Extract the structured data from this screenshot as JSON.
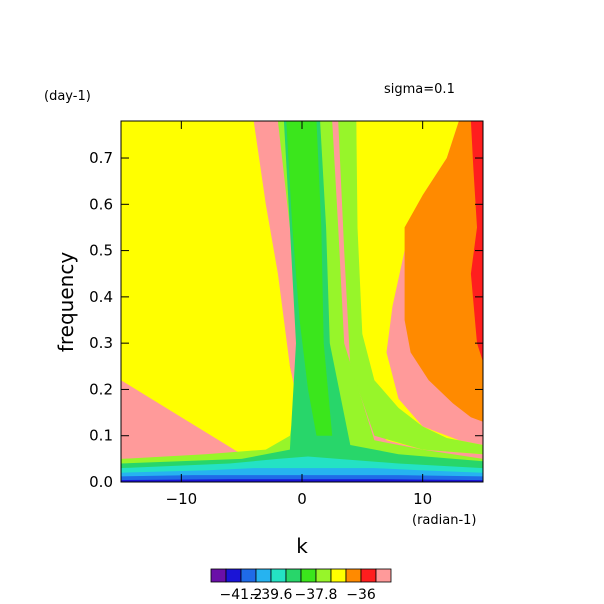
{
  "header": {
    "y_unit_label": "(day-1)",
    "sigma_label": "sigma=0.1",
    "x_unit_label": "(radian-1)"
  },
  "colorbar": {
    "colors": [
      "#6a0fa8",
      "#1a14d6",
      "#1f6be8",
      "#26b3f0",
      "#24e2c4",
      "#28d66a",
      "#3be61c",
      "#97f52a",
      "#ffff00",
      "#ff8a00",
      "#ff1e1e",
      "#ff9a9a"
    ],
    "labels": [
      "-41.2",
      "-39.6",
      "-37.8",
      "-36"
    ]
  },
  "chart_data": {
    "type": "heatmap",
    "title": "",
    "xlabel": "k",
    "ylabel": "frequency",
    "xlim": [
      -15,
      15
    ],
    "ylim": [
      0,
      0.78
    ],
    "x_ticks": [
      -10,
      0,
      10
    ],
    "y_ticks": [
      0.0,
      0.1,
      0.2,
      0.3,
      0.4,
      0.5,
      0.6,
      0.7
    ],
    "x_tick_labels": [
      "−10",
      "0",
      "10"
    ],
    "y_tick_labels": [
      "0.0",
      "0.1",
      "0.2",
      "0.3",
      "0.4",
      "0.5",
      "0.6",
      "0.7"
    ],
    "color_levels": [
      -41.2,
      -39.6,
      -37.8,
      -36
    ],
    "regions": [
      {
        "name": "pale red (highest)",
        "color": "#ff9a9a",
        "points": [
          [
            -15,
            0.78
          ],
          [
            -12,
            0.78
          ],
          [
            -10,
            0.72
          ],
          [
            -8,
            0.6
          ],
          [
            -6,
            0.47
          ],
          [
            -4,
            0.34
          ],
          [
            -2.5,
            0.2
          ],
          [
            -1.5,
            0.1
          ],
          [
            -1.8,
            0.07
          ],
          [
            -3,
            0.08
          ],
          [
            -5,
            0.15
          ],
          [
            -8,
            0.27
          ],
          [
            -11,
            0.38
          ],
          [
            -13,
            0.47
          ],
          [
            -15,
            0.55
          ]
        ]
      },
      {
        "name": "red",
        "color": "#ff1e1e",
        "points": [
          [
            -15,
            0.78
          ],
          [
            -10,
            0.78
          ],
          [
            -8,
            0.7
          ],
          [
            -6,
            0.6
          ],
          [
            -4,
            0.45
          ],
          [
            -2,
            0.25
          ],
          [
            -0.5,
            0.08
          ],
          [
            -1,
            0.06
          ],
          [
            -2.5,
            0.065
          ],
          [
            -4,
            0.1
          ],
          [
            -6,
            0.16
          ],
          [
            -9,
            0.24
          ],
          [
            -12,
            0.32
          ],
          [
            -15,
            0.4
          ]
        ]
      },
      {
        "name": "orange",
        "color": "#ff8a00",
        "points": [
          [
            -15,
            0.78
          ],
          [
            -8,
            0.78
          ],
          [
            -6,
            0.72
          ],
          [
            -4,
            0.6
          ],
          [
            -2.5,
            0.45
          ],
          [
            -1,
            0.25
          ],
          [
            0.3,
            0.08
          ],
          [
            -1,
            0.05
          ],
          [
            -3,
            0.06
          ],
          [
            -6,
            0.12
          ],
          [
            -10,
            0.2
          ],
          [
            -15,
            0.3
          ]
        ]
      },
      {
        "name": "yellow",
        "color": "#ffff00",
        "points": [
          [
            -15,
            0.78
          ],
          [
            -4,
            0.78
          ],
          [
            -3,
            0.6
          ],
          [
            -2,
            0.45
          ],
          [
            -1,
            0.25
          ],
          [
            0.5,
            0.07
          ],
          [
            -1.5,
            0.04
          ],
          [
            -5,
            0.06
          ],
          [
            -10,
            0.14
          ],
          [
            -15,
            0.22
          ]
        ]
      },
      {
        "name": "light green",
        "color": "#97f52a",
        "points": [
          [
            -15,
            0.05
          ],
          [
            -8,
            0.06
          ],
          [
            -3,
            0.07
          ],
          [
            -1,
            0.1
          ],
          [
            0.2,
            0.3
          ],
          [
            -1,
            0.55
          ],
          [
            -2,
            0.78
          ],
          [
            2.5,
            0.78
          ],
          [
            3,
            0.55
          ],
          [
            3.5,
            0.3
          ],
          [
            6,
            0.09
          ],
          [
            10,
            0.07
          ],
          [
            15,
            0.05
          ],
          [
            15,
            0.0
          ],
          [
            -15,
            0.0
          ]
        ]
      },
      {
        "name": "green",
        "color": "#28d66a",
        "points": [
          [
            -15,
            0.04
          ],
          [
            -5,
            0.05
          ],
          [
            -1,
            0.07
          ],
          [
            -0.5,
            0.3
          ],
          [
            -1,
            0.55
          ],
          [
            -1.5,
            0.78
          ],
          [
            1.5,
            0.78
          ],
          [
            2,
            0.55
          ],
          [
            2.3,
            0.3
          ],
          [
            4,
            0.08
          ],
          [
            8,
            0.06
          ],
          [
            15,
            0.045
          ],
          [
            15,
            0.0
          ],
          [
            -15,
            0.0
          ]
        ]
      },
      {
        "name": "green ridge",
        "color": "#3be61c",
        "points": [
          [
            -1.3,
            0.78
          ],
          [
            -0.8,
            0.55
          ],
          [
            -0.2,
            0.35
          ],
          [
            0.5,
            0.2
          ],
          [
            1.2,
            0.1
          ],
          [
            2.5,
            0.1
          ],
          [
            1.8,
            0.3
          ],
          [
            1.6,
            0.55
          ],
          [
            1.2,
            0.78
          ]
        ]
      },
      {
        "name": "teal",
        "color": "#24e2c4",
        "points": [
          [
            -15,
            0.03
          ],
          [
            -6,
            0.04
          ],
          [
            -2,
            0.05
          ],
          [
            0.5,
            0.055
          ],
          [
            3,
            0.05
          ],
          [
            8,
            0.04
          ],
          [
            15,
            0.03
          ],
          [
            15,
            0.0
          ],
          [
            -15,
            0.0
          ]
        ]
      },
      {
        "name": "cyan",
        "color": "#26b3f0",
        "points": [
          [
            -15,
            0.02
          ],
          [
            -8,
            0.025
          ],
          [
            -4,
            0.03
          ],
          [
            -1,
            0.03
          ],
          [
            2,
            0.03
          ],
          [
            6,
            0.03
          ],
          [
            10,
            0.025
          ],
          [
            15,
            0.02
          ],
          [
            15,
            0.0
          ],
          [
            -15,
            0.0
          ]
        ]
      },
      {
        "name": "blue",
        "color": "#1f6be8",
        "points": [
          [
            -15,
            0.012
          ],
          [
            -9,
            0.015
          ],
          [
            -3,
            0.015
          ],
          [
            2,
            0.015
          ],
          [
            8,
            0.015
          ],
          [
            15,
            0.012
          ],
          [
            15,
            0.0
          ],
          [
            -15,
            0.0
          ]
        ]
      },
      {
        "name": "dark blue",
        "color": "#1a14d6",
        "points": [
          [
            -15,
            0.004
          ],
          [
            -6,
            0.006
          ],
          [
            0,
            0.006
          ],
          [
            6,
            0.006
          ],
          [
            15,
            0.004
          ],
          [
            15,
            0.0
          ],
          [
            -15,
            0.0
          ]
        ]
      },
      {
        "name": "right yellow",
        "color": "#ffff00",
        "points": [
          [
            5,
            0.78
          ],
          [
            13,
            0.78
          ],
          [
            12,
            0.7
          ],
          [
            10,
            0.62
          ],
          [
            8.5,
            0.5
          ],
          [
            7.5,
            0.38
          ],
          [
            7,
            0.28
          ],
          [
            8,
            0.18
          ],
          [
            10,
            0.12
          ],
          [
            13,
            0.09
          ],
          [
            15,
            0.08
          ],
          [
            15,
            0.06
          ],
          [
            10,
            0.07
          ],
          [
            7,
            0.09
          ],
          [
            5.5,
            0.15
          ],
          [
            4.5,
            0.3
          ],
          [
            4.5,
            0.55
          ],
          [
            4.5,
            0.78
          ]
        ]
      },
      {
        "name": "right orange",
        "color": "#ff8a00",
        "points": [
          [
            15,
            0.78
          ],
          [
            13,
            0.78
          ],
          [
            12,
            0.7
          ],
          [
            10,
            0.62
          ],
          [
            8.5,
            0.55
          ],
          [
            8.5,
            0.45
          ],
          [
            8.5,
            0.35
          ],
          [
            9,
            0.28
          ],
          [
            10.5,
            0.22
          ],
          [
            12.5,
            0.17
          ],
          [
            14,
            0.14
          ],
          [
            15,
            0.13
          ]
        ]
      },
      {
        "name": "right red",
        "color": "#ff1e1e",
        "points": [
          [
            15,
            0.78
          ],
          [
            14,
            0.78
          ],
          [
            14.2,
            0.68
          ],
          [
            14.5,
            0.55
          ],
          [
            14,
            0.45
          ],
          [
            14.5,
            0.3
          ],
          [
            15,
            0.26
          ]
        ]
      },
      {
        "name": "right green",
        "color": "#97f52a",
        "points": [
          [
            15,
            0.08
          ],
          [
            12,
            0.095
          ],
          [
            10,
            0.12
          ],
          [
            8,
            0.16
          ],
          [
            6,
            0.22
          ],
          [
            5,
            0.32
          ],
          [
            4.6,
            0.55
          ],
          [
            4.5,
            0.78
          ],
          [
            3,
            0.78
          ],
          [
            3.5,
            0.5
          ],
          [
            4,
            0.25
          ],
          [
            6,
            0.1
          ],
          [
            10,
            0.07
          ],
          [
            15,
            0.06
          ]
        ]
      }
    ]
  }
}
